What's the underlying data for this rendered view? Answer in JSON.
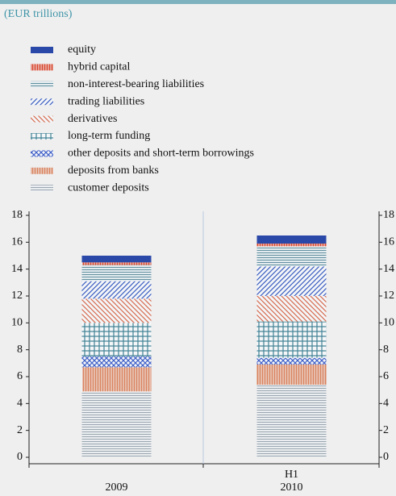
{
  "chart_data": {
    "type": "stacked-bar",
    "subtitle": "(EUR trillions)",
    "categories": [
      [
        "2009"
      ],
      [
        "H1",
        "2010"
      ]
    ],
    "ylim": [
      0,
      18
    ],
    "yticks": [
      0,
      2,
      4,
      6,
      8,
      10,
      12,
      14,
      16,
      18
    ],
    "y2lim": [
      0,
      18
    ],
    "y2ticks": [
      0,
      2,
      4,
      6,
      8,
      10,
      12,
      14,
      16,
      18
    ],
    "series": [
      {
        "name": "equity",
        "color": "#2a48a8",
        "pattern": "solid",
        "values": [
          0.5,
          0.6
        ]
      },
      {
        "name": "hybrid capital",
        "color": "#d9472e",
        "pattern": "vlines",
        "values": [
          0.2,
          0.2
        ]
      },
      {
        "name": "non-interest-bearing liabilities",
        "color": "#5f8f9f",
        "pattern": "hlines",
        "values": [
          1.2,
          1.5
        ]
      },
      {
        "name": "trading liabilities",
        "color": "#3a5cc0",
        "pattern": "diag",
        "values": [
          1.3,
          2.2
        ]
      },
      {
        "name": "derivatives",
        "color": "#d66a4e",
        "pattern": "diag2",
        "values": [
          1.8,
          1.9
        ]
      },
      {
        "name": "long-term funding",
        "color": "#3f8194",
        "pattern": "grid",
        "values": [
          2.5,
          2.7
        ]
      },
      {
        "name": "other deposits and short-term borrowings",
        "color": "#4060c8",
        "pattern": "cross",
        "values": [
          0.8,
          0.5
        ]
      },
      {
        "name": "deposits from banks",
        "color": "#d9835e",
        "pattern": "vlines",
        "values": [
          1.8,
          1.5
        ]
      },
      {
        "name": "customer deposits",
        "color": "#9aa6b0",
        "pattern": "hlines",
        "values": [
          4.9,
          5.4
        ]
      }
    ]
  }
}
